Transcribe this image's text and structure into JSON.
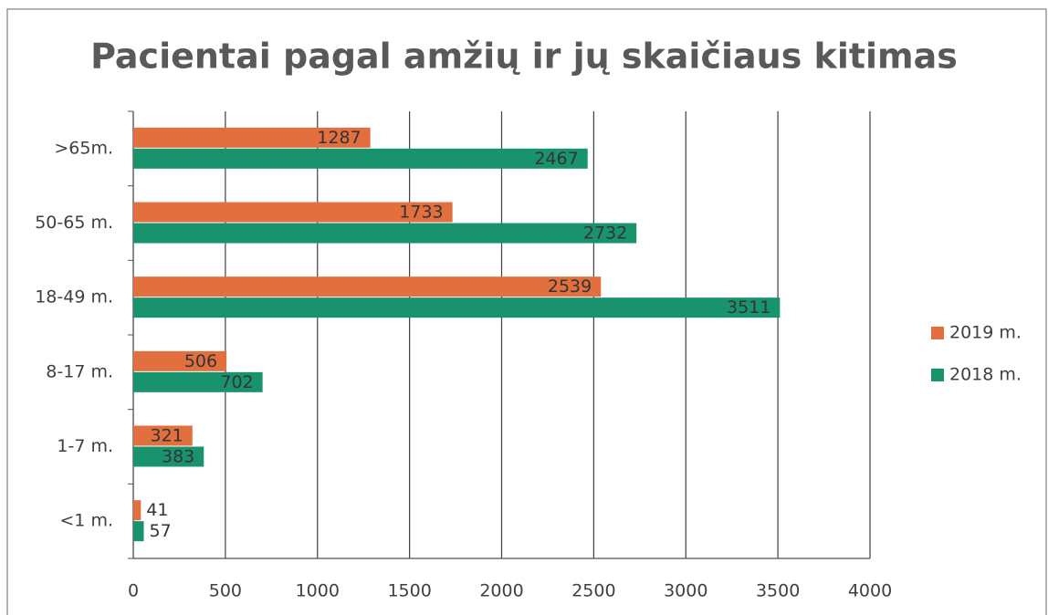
{
  "chart_data": {
    "type": "bar",
    "orientation": "horizontal",
    "title": "Pacientai pagal amžių ir jų skaičiaus kitimas",
    "categories": [
      ">65m.",
      "50-65 m.",
      "18-49 m.",
      "8-17 m.",
      "1-7 m.",
      "<1 m."
    ],
    "series": [
      {
        "name": "2019 m.",
        "color": "#e2703f",
        "values": [
          1287,
          1733,
          2539,
          506,
          321,
          41
        ]
      },
      {
        "name": "2018 m.",
        "color": "#18936e",
        "values": [
          2467,
          2732,
          3511,
          702,
          383,
          57
        ]
      }
    ],
    "xlim": [
      0,
      4000
    ],
    "xticks": [
      0,
      500,
      1000,
      1500,
      2000,
      2500,
      3000,
      3500,
      4000
    ],
    "grid": true,
    "legend": "right"
  }
}
